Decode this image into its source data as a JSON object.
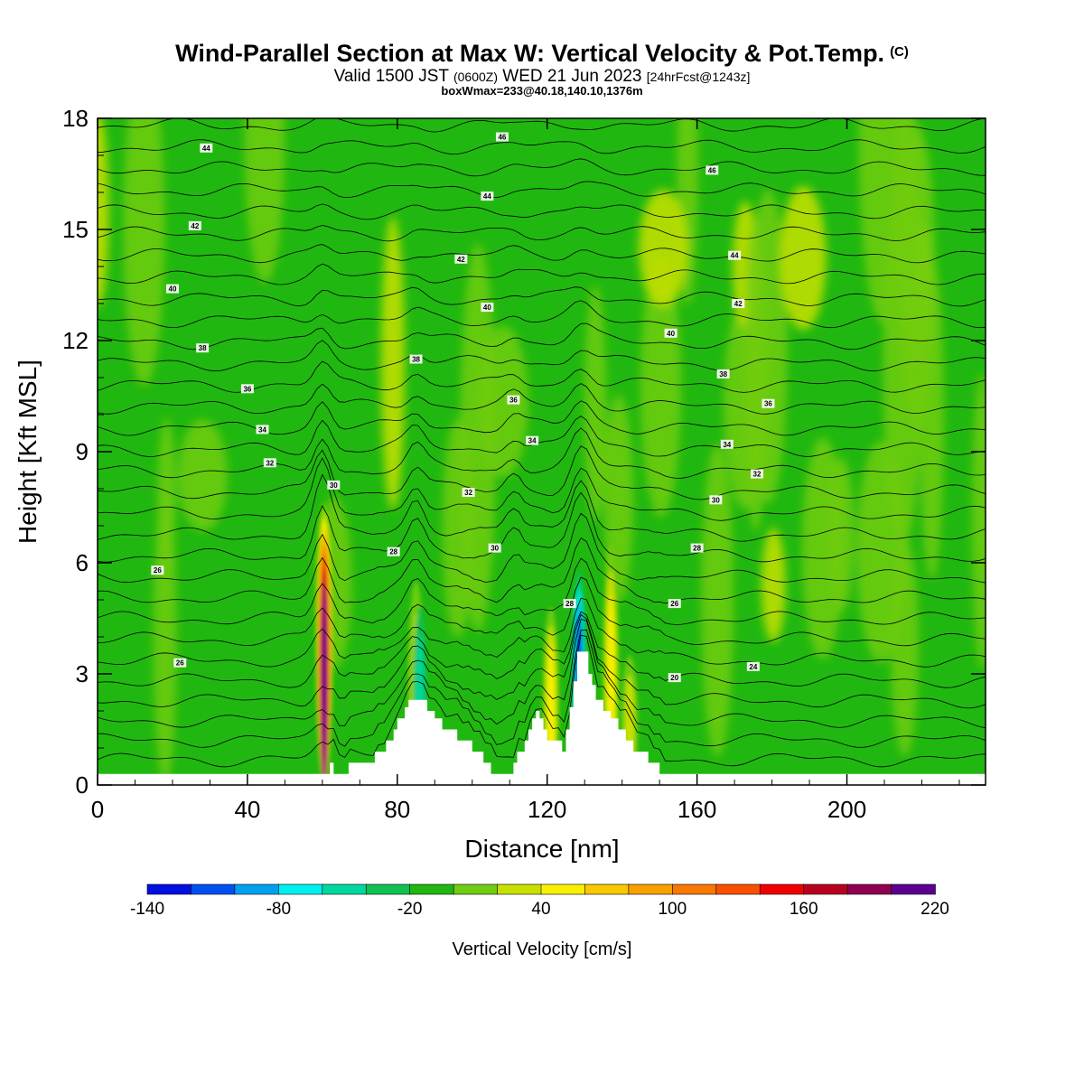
{
  "header": {
    "title": "Wind-Parallel Section at Max W: Vertical Velocity & Pot.Temp.",
    "copyright": "(C)",
    "valid_prefix": "Valid 1500 JST",
    "valid_utc": "(0600Z)",
    "valid_date": "WED 21 Jun 2023",
    "forecast": "[24hrFcst@1243z]",
    "box_info": "boxWmax=233@40.18,140.10,1376m"
  },
  "chart_data": {
    "type": "heatmap",
    "xlabel": "Distance [nm]",
    "ylabel": "Height [Kft MSL]",
    "xlim": [
      0,
      237
    ],
    "ylim": [
      0,
      18
    ],
    "xticks": [
      0,
      40,
      80,
      120,
      160,
      200
    ],
    "yticks": [
      0,
      3,
      6,
      9,
      12,
      15,
      18
    ],
    "colorbar": {
      "label": "Vertical Velocity [cm/s]",
      "tick_labels": [
        -140,
        -80,
        -20,
        40,
        100,
        160,
        220
      ],
      "range": [
        -140,
        220
      ],
      "step": 20,
      "colors": [
        "#0010e0",
        "#0050f0",
        "#00a0f0",
        "#00f0f0",
        "#00d8a0",
        "#10c050",
        "#20b810",
        "#70cc10",
        "#c8e000",
        "#f8f000",
        "#f8c800",
        "#f8a000",
        "#f87800",
        "#f85000",
        "#f00000",
        "#b80020",
        "#900050",
        "#5c0090"
      ]
    },
    "background_velocity": -10,
    "updraft_columns": [
      {
        "x": 60.5,
        "top": 7.6,
        "peak": 220
      },
      {
        "x": 85,
        "top": 5.5,
        "peak": 30
      },
      {
        "x": 121,
        "top": 4.8,
        "peak": 50
      },
      {
        "x": 137,
        "top": 6.5,
        "peak": 50
      },
      {
        "x": 142,
        "top": 3.5,
        "peak": 30
      }
    ],
    "downdraft_columns": [
      {
        "x": 128.5,
        "top": 5.8,
        "peak": -140
      },
      {
        "x": 86,
        "top": 4.8,
        "peak": -60
      }
    ],
    "terrain": [
      [
        0,
        0.3
      ],
      [
        61,
        0.3
      ],
      [
        62,
        0.6
      ],
      [
        63,
        0.3
      ],
      [
        67,
        0.6
      ],
      [
        73,
        0.6
      ],
      [
        74,
        0.9
      ],
      [
        77,
        1.2
      ],
      [
        79,
        1.5
      ],
      [
        80,
        1.8
      ],
      [
        82,
        2.1
      ],
      [
        83,
        2.3
      ],
      [
        87,
        2.3
      ],
      [
        88,
        2.0
      ],
      [
        90,
        1.8
      ],
      [
        92,
        1.5
      ],
      [
        96,
        1.2
      ],
      [
        100,
        0.9
      ],
      [
        103,
        0.6
      ],
      [
        105,
        0.3
      ],
      [
        111,
        0.6
      ],
      [
        112,
        0.9
      ],
      [
        114,
        1.2
      ],
      [
        115,
        1.5
      ],
      [
        116,
        1.8
      ],
      [
        117,
        2.0
      ],
      [
        118,
        1.8
      ],
      [
        119,
        1.5
      ],
      [
        120,
        1.2
      ],
      [
        124,
        0.9
      ],
      [
        125,
        1.5
      ],
      [
        126,
        2.1
      ],
      [
        127,
        2.8
      ],
      [
        128,
        3.6
      ],
      [
        130,
        3.6
      ],
      [
        131,
        3.0
      ],
      [
        132,
        2.7
      ],
      [
        133,
        2.3
      ],
      [
        135,
        2.0
      ],
      [
        137,
        1.8
      ],
      [
        139,
        1.5
      ],
      [
        141,
        1.2
      ],
      [
        143,
        0.9
      ],
      [
        147,
        0.6
      ],
      [
        150,
        0.3
      ],
      [
        237,
        0.3
      ]
    ],
    "theta_contours": {
      "start": 20,
      "step": 1,
      "count": 31,
      "labels": [
        {
          "x": 16,
          "y": 5.8,
          "text": "26"
        },
        {
          "x": 22,
          "y": 3.3,
          "text": "26"
        },
        {
          "x": 29,
          "y": 17.2,
          "text": "44"
        },
        {
          "x": 26,
          "y": 15.1,
          "text": "42"
        },
        {
          "x": 20,
          "y": 13.4,
          "text": "40"
        },
        {
          "x": 28,
          "y": 11.8,
          "text": "38"
        },
        {
          "x": 40,
          "y": 10.7,
          "text": "36"
        },
        {
          "x": 44,
          "y": 9.6,
          "text": "34"
        },
        {
          "x": 46,
          "y": 8.7,
          "text": "32"
        },
        {
          "x": 63,
          "y": 8.1,
          "text": "30"
        },
        {
          "x": 79,
          "y": 6.3,
          "text": "28"
        },
        {
          "x": 108,
          "y": 17.5,
          "text": "46"
        },
        {
          "x": 104,
          "y": 15.9,
          "text": "44"
        },
        {
          "x": 97,
          "y": 14.2,
          "text": "42"
        },
        {
          "x": 104,
          "y": 12.9,
          "text": "40"
        },
        {
          "x": 85,
          "y": 11.5,
          "text": "38"
        },
        {
          "x": 111,
          "y": 10.4,
          "text": "36"
        },
        {
          "x": 116,
          "y": 9.3,
          "text": "34"
        },
        {
          "x": 99,
          "y": 7.9,
          "text": "32"
        },
        {
          "x": 106,
          "y": 6.4,
          "text": "30"
        },
        {
          "x": 126,
          "y": 4.9,
          "text": "28"
        },
        {
          "x": 164,
          "y": 16.6,
          "text": "46"
        },
        {
          "x": 170,
          "y": 14.3,
          "text": "44"
        },
        {
          "x": 171,
          "y": 13.0,
          "text": "42"
        },
        {
          "x": 153,
          "y": 12.2,
          "text": "40"
        },
        {
          "x": 167,
          "y": 11.1,
          "text": "38"
        },
        {
          "x": 179,
          "y": 10.3,
          "text": "36"
        },
        {
          "x": 168,
          "y": 9.2,
          "text": "34"
        },
        {
          "x": 176,
          "y": 8.4,
          "text": "32"
        },
        {
          "x": 165,
          "y": 7.7,
          "text": "30"
        },
        {
          "x": 160,
          "y": 6.4,
          "text": "28"
        },
        {
          "x": 154,
          "y": 4.9,
          "text": "26"
        },
        {
          "x": 175,
          "y": 3.2,
          "text": "24"
        },
        {
          "x": 154,
          "y": 2.9,
          "text": "20"
        }
      ]
    }
  }
}
